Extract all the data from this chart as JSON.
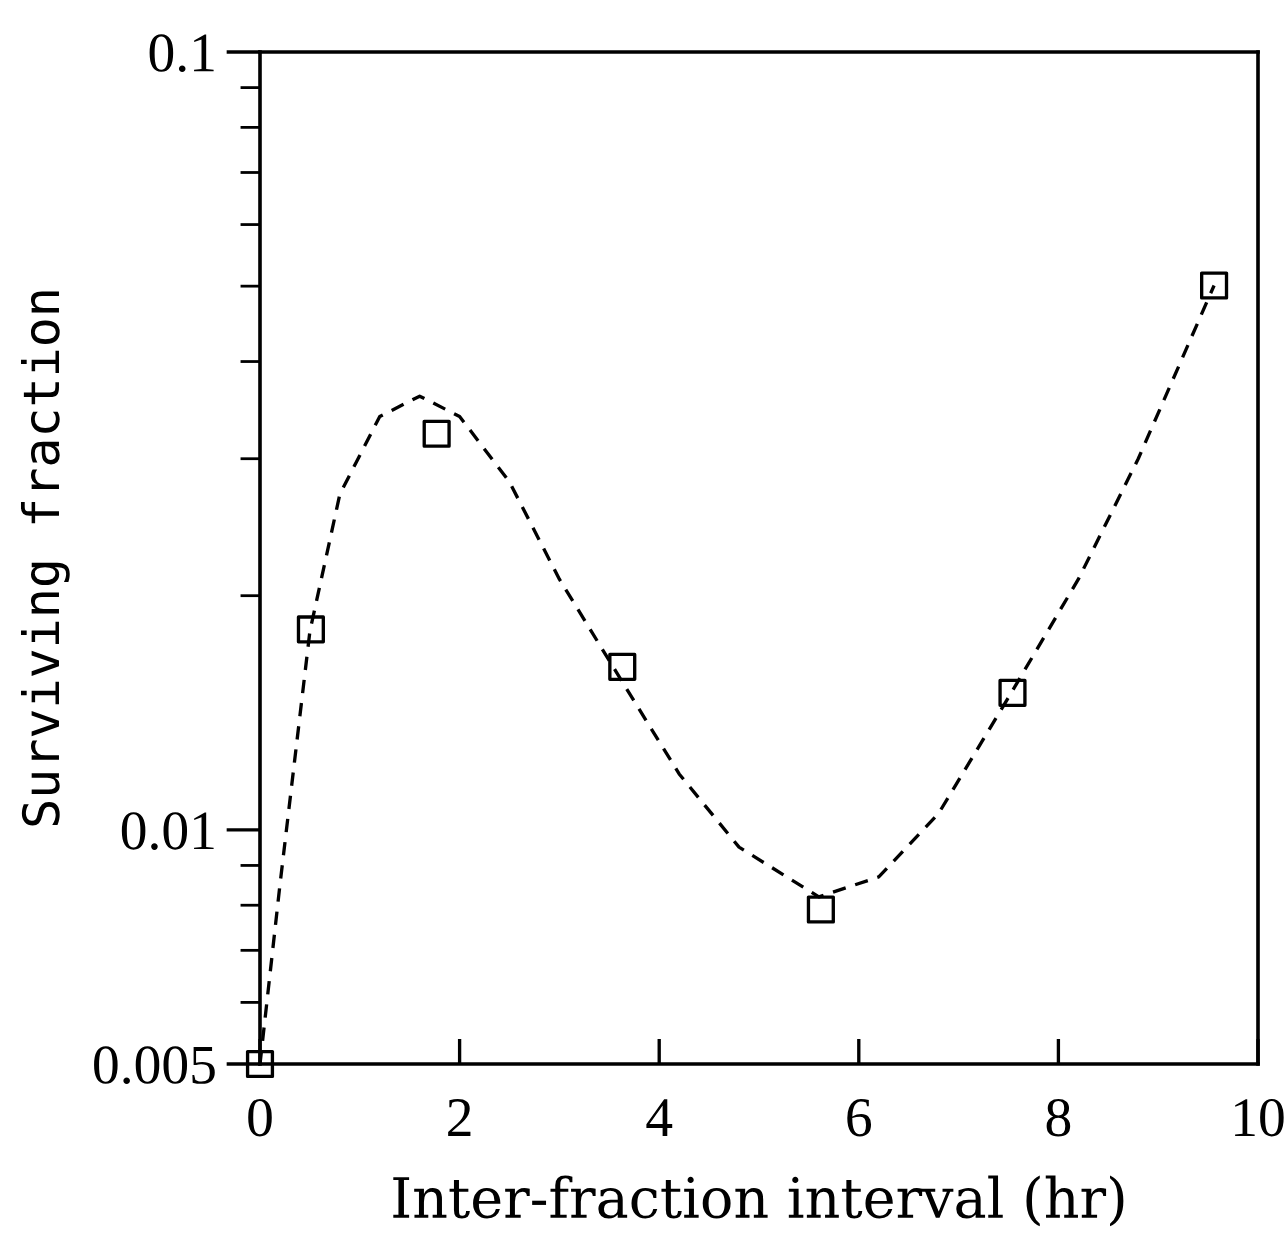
{
  "chart_data": {
    "type": "scatter",
    "xlabel": "Inter-fraction interval (hr)",
    "ylabel": "Surviving fraction",
    "log": "y",
    "xlim": [
      0,
      10
    ],
    "xticks": [
      0,
      2,
      4,
      6,
      8,
      10
    ],
    "ylim": [
      0.005,
      0.1
    ],
    "yticks": [
      0.005,
      {
        "value": 0.006,
        "label": null
      },
      {
        "value": 0.007,
        "label": null
      },
      {
        "value": 0.008,
        "label": null
      },
      {
        "value": 0.009,
        "label": null
      },
      0.01,
      {
        "value": 0.02,
        "label": null
      },
      {
        "value": 0.03,
        "label": null
      },
      {
        "value": 0.04,
        "label": null
      },
      {
        "value": 0.05,
        "label": null
      },
      {
        "value": 0.06,
        "label": null
      },
      {
        "value": 0.07,
        "label": null
      },
      {
        "value": 0.08,
        "label": null
      },
      {
        "value": 0.09,
        "label": null
      },
      0.1
    ],
    "grid": false,
    "legend": false,
    "series": [
      {
        "color": "#000000",
        "marker": "square",
        "x": [
          0,
          0.51,
          1.77,
          3.63,
          5.62,
          7.54,
          9.56
        ],
        "values": [
          0.005,
          0.0181,
          0.0323,
          0.0162,
          0.0079,
          0.015,
          0.0501
        ]
      },
      {
        "type": "line",
        "color": "#000000",
        "marker": "none",
        "line_style": "dashed",
        "x": [
          0,
          0.2,
          0.5,
          0.8,
          1.2,
          1.6,
          2.0,
          2.5,
          3.0,
          3.63,
          4.2,
          4.8,
          5.6,
          6.2,
          6.8,
          7.5,
          8.2,
          8.8,
          9.56
        ],
        "values": [
          0.005,
          0.0085,
          0.018,
          0.027,
          0.034,
          0.0361,
          0.034,
          0.028,
          0.021,
          0.0155,
          0.0118,
          0.0095,
          0.0082,
          0.0087,
          0.0105,
          0.0148,
          0.021,
          0.03,
          0.0501
        ]
      }
    ]
  }
}
